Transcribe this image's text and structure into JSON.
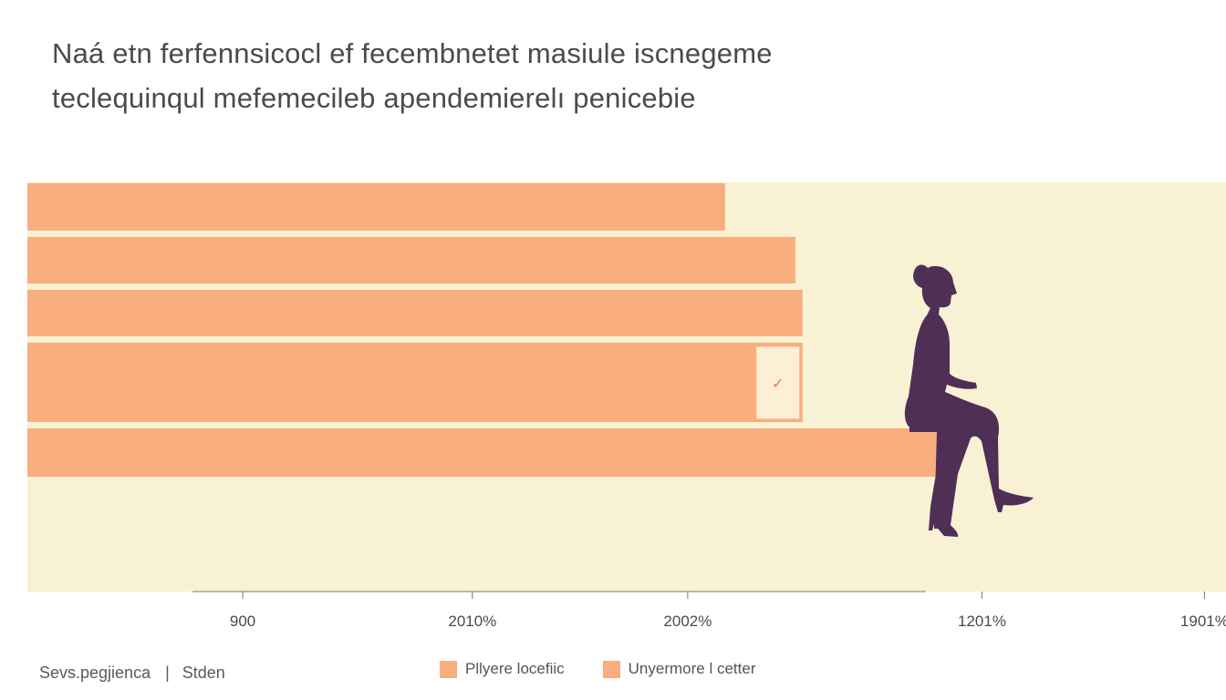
{
  "title": {
    "line1": "Naá etn ferfennsicocl ef fecembnetet masiule iscnegeme",
    "line2": "teclequinqul mefemecileb apendemierelı penicebie"
  },
  "chart_data": {
    "type": "bar",
    "orientation": "horizontal",
    "values": [
      2002,
      2100,
      2110,
      2110,
      2311
    ],
    "x_ticks": [
      {
        "label": "900",
        "value": 1330
      },
      {
        "label": "2010%",
        "value": 1650
      },
      {
        "label": "2002%",
        "value": 1950
      },
      {
        "label": "1201%",
        "value": 2360
      },
      {
        "label": "1901%",
        "value": 2670
      }
    ],
    "xlim": [
      1030,
      2700
    ],
    "bar_color": "#f8ae7e",
    "plot_background": "#f8f1d3",
    "grid": false,
    "annotation_mark": "✓",
    "legend_position": "bottom-center",
    "legend": [
      {
        "label": "Pllyere locefiic",
        "color": "#f8ae7e"
      },
      {
        "label": "Unyermore l cetter",
        "color": "#f8ae7e"
      }
    ],
    "figure_color": "#4f2f55"
  },
  "footer": {
    "source": "Sevs.pegjienca",
    "separator": "|",
    "author": "Stden"
  }
}
